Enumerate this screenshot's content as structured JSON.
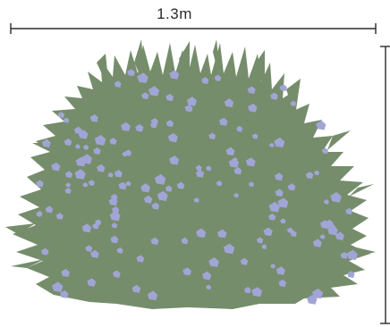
{
  "width_dimension": {
    "label": "1.3m"
  },
  "height_dimension": {
    "label": ""
  },
  "colors": {
    "foliage": "#768d6c",
    "flowers": "#a1a5d6",
    "dimension_line": "#2b2b2b"
  },
  "illustration": {
    "subject": "shrub-with-blue-flowers-icon"
  }
}
